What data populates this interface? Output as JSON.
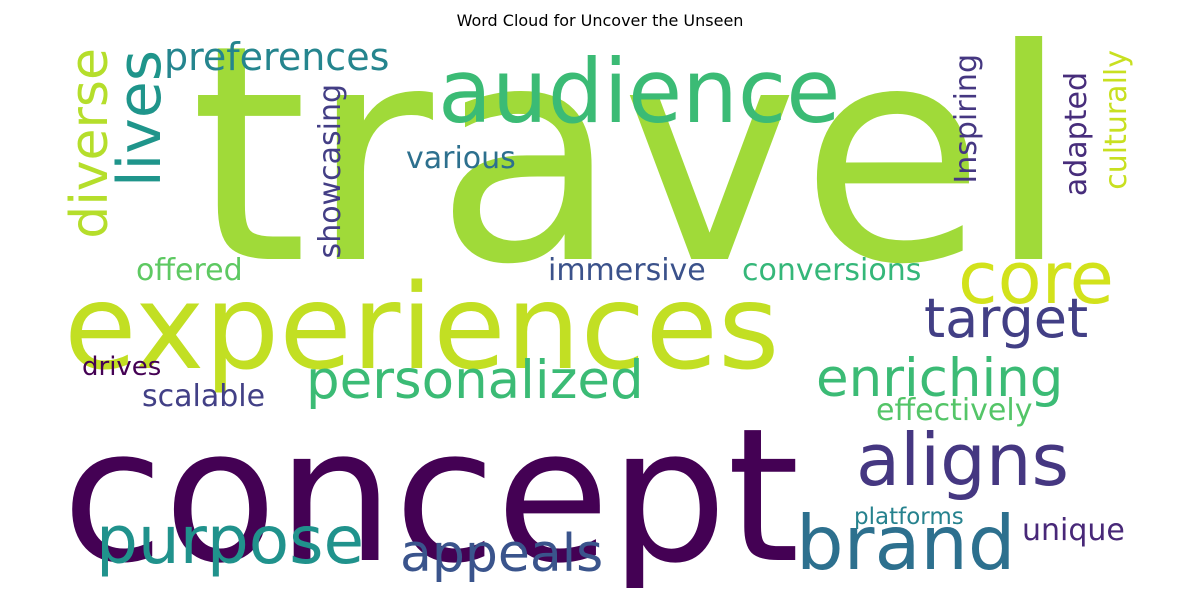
{
  "title": "Word Cloud for Uncover the Unseen",
  "words": {
    "travel": {
      "text": "travel",
      "color": "#a0da39"
    },
    "experiences": {
      "text": "experiences",
      "color": "#c2df23"
    },
    "concept": {
      "text": "concept",
      "color": "#440154"
    },
    "audience": {
      "text": "audience",
      "color": "#3bbb75"
    },
    "core": {
      "text": "core",
      "color": "#d2e21b"
    },
    "target": {
      "text": "target",
      "color": "#423f85"
    },
    "personalized": {
      "text": "personalized",
      "color": "#3bbb75"
    },
    "enriching": {
      "text": "enriching",
      "color": "#3bbb75"
    },
    "aligns": {
      "text": "aligns",
      "color": "#453781"
    },
    "purpose": {
      "text": "purpose",
      "color": "#20928c"
    },
    "brand": {
      "text": "brand",
      "color": "#2d708e"
    },
    "appeals": {
      "text": "appeals",
      "color": "#3a548c"
    },
    "diverse": {
      "text": "diverse",
      "color": "#b5de2b"
    },
    "lives": {
      "text": "lives",
      "color": "#1f958b"
    },
    "preferences": {
      "text": "preferences",
      "color": "#25858e"
    },
    "showcasing": {
      "text": "showcasing",
      "color": "#433e85"
    },
    "various": {
      "text": "various",
      "color": "#2d708e"
    },
    "inspiring": {
      "text": "Inspiring",
      "color": "#453781"
    },
    "adapted": {
      "text": "adapted",
      "color": "#472d7b"
    },
    "culturally": {
      "text": "culturally",
      "color": "#c8e020"
    },
    "offered": {
      "text": "offered",
      "color": "#5ec962"
    },
    "immersive": {
      "text": "immersive",
      "color": "#3b528b"
    },
    "conversions": {
      "text": "conversions",
      "color": "#35b779"
    },
    "drives": {
      "text": "drives",
      "color": "#440154"
    },
    "scalable": {
      "text": "scalable",
      "color": "#424086"
    },
    "effectively": {
      "text": "effectively",
      "color": "#54c568"
    },
    "platforms": {
      "text": "platforms",
      "color": "#26828e"
    },
    "unique": {
      "text": "unique",
      "color": "#482878"
    }
  }
}
